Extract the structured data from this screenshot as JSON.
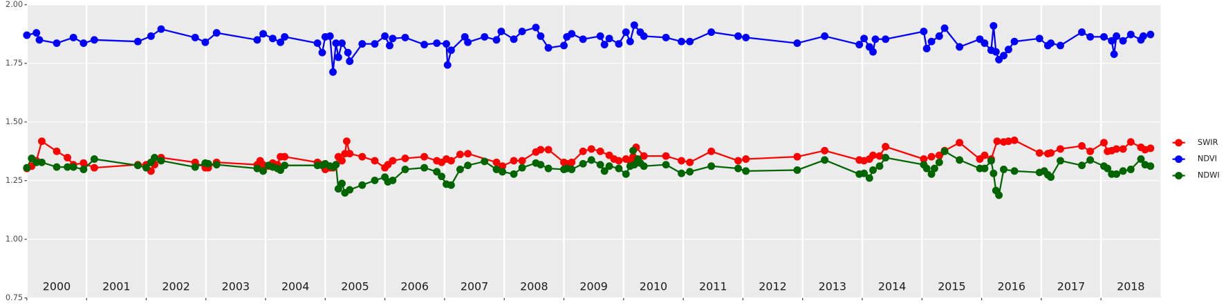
{
  "chart_data": {
    "type": "line",
    "xlim": [
      2000,
      2019
    ],
    "xticks": [
      2000,
      2001,
      2002,
      2003,
      2004,
      2005,
      2006,
      2007,
      2008,
      2009,
      2010,
      2011,
      2012,
      2013,
      2014,
      2015,
      2016,
      2017,
      2018
    ],
    "ylim": [
      0.75,
      2.0
    ],
    "yticks": [
      0.75,
      {
        "value": 1.0,
        "label": "1.00"
      },
      1.25,
      {
        "value": 1.5,
        "label": "1.50"
      },
      1.75,
      {
        "value": 2.0,
        "label": "2.00"
      }
    ],
    "grid": true,
    "legend": "right",
    "series": [
      {
        "name": "SWIR",
        "color": "#ff0000",
        "x": [
          2000.0,
          2000.08,
          2000.16,
          2000.25,
          2000.5,
          2000.68,
          2000.78,
          2000.95,
          2001.13,
          2001.86,
          2002.0,
          2002.08,
          2002.14,
          2002.25,
          2002.82,
          2002.99,
          2003.04,
          2003.18,
          2003.86,
          2003.91,
          2003.96,
          2004.05,
          2004.12,
          2004.2,
          2004.25,
          2004.32,
          2004.87,
          2004.95,
          2005.0,
          2005.08,
          2005.13,
          2005.18,
          2005.22,
          2005.28,
          2005.33,
          2005.36,
          2005.41,
          2005.62,
          2005.83,
          2006.0,
          2006.05,
          2006.13,
          2006.34,
          2006.66,
          2006.87,
          2006.95,
          2007.03,
          2007.11,
          2007.26,
          2007.39,
          2007.87,
          2007.97,
          2008.16,
          2008.3,
          2008.53,
          2008.61,
          2008.74,
          2009.0,
          2009.05,
          2009.13,
          2009.32,
          2009.46,
          2009.61,
          2009.76,
          2009.84,
          2009.92,
          2010.04,
          2010.11,
          2010.16,
          2010.21,
          2010.34,
          2010.71,
          2010.97,
          2011.11,
          2011.47,
          2011.92,
          2012.05,
          2012.91,
          2013.37,
          2013.95,
          2014.03,
          2014.12,
          2014.18,
          2014.29,
          2014.39,
          2015.03,
          2015.16,
          2015.29,
          2015.38,
          2015.63,
          2015.97,
          2016.05,
          2016.16,
          2016.26,
          2016.37,
          2016.45,
          2016.55,
          2016.97,
          2017.11,
          2017.16,
          2017.32,
          2017.68,
          2017.82,
          2018.05,
          2018.11,
          2018.18,
          2018.26,
          2018.37,
          2018.5,
          2018.67,
          2018.74,
          2018.83
        ],
        "values": [
          1.302,
          1.312,
          1.335,
          1.418,
          1.375,
          1.348,
          1.318,
          1.325,
          1.305,
          1.318,
          1.318,
          1.291,
          1.318,
          1.348,
          1.328,
          1.305,
          1.305,
          1.328,
          1.318,
          1.335,
          1.318,
          1.312,
          1.325,
          1.318,
          1.352,
          1.352,
          1.328,
          1.318,
          1.298,
          1.305,
          1.305,
          1.318,
          1.352,
          1.335,
          1.365,
          1.418,
          1.365,
          1.352,
          1.335,
          1.305,
          1.318,
          1.335,
          1.345,
          1.352,
          1.335,
          1.328,
          1.342,
          1.335,
          1.362,
          1.365,
          1.328,
          1.312,
          1.335,
          1.335,
          1.372,
          1.382,
          1.382,
          1.328,
          1.322,
          1.328,
          1.375,
          1.385,
          1.375,
          1.358,
          1.342,
          1.335,
          1.342,
          1.335,
          1.352,
          1.392,
          1.355,
          1.355,
          1.335,
          1.328,
          1.375,
          1.335,
          1.342,
          1.352,
          1.378,
          1.338,
          1.335,
          1.342,
          1.358,
          1.355,
          1.395,
          1.342,
          1.352,
          1.358,
          1.378,
          1.412,
          1.342,
          1.358,
          1.342,
          1.418,
          1.415,
          1.418,
          1.422,
          1.368,
          1.365,
          1.368,
          1.385,
          1.398,
          1.375,
          1.412,
          1.375,
          1.378,
          1.385,
          1.385,
          1.415,
          1.392,
          1.382,
          1.388
        ]
      },
      {
        "name": "NDVI",
        "color": "#0000ff",
        "x": [
          2000.0,
          2000.16,
          2000.21,
          2000.5,
          2000.78,
          2000.95,
          2001.13,
          2001.86,
          2002.08,
          2002.25,
          2002.82,
          2002.99,
          2003.18,
          2003.86,
          2003.96,
          2004.12,
          2004.25,
          2004.32,
          2004.87,
          2004.95,
          2005.0,
          2005.08,
          2005.13,
          2005.18,
          2005.22,
          2005.28,
          2005.38,
          2005.41,
          2005.62,
          2005.83,
          2006.0,
          2006.08,
          2006.13,
          2006.34,
          2006.66,
          2006.87,
          2007.03,
          2007.05,
          2007.11,
          2007.34,
          2007.39,
          2007.67,
          2007.87,
          2007.95,
          2008.16,
          2008.3,
          2008.53,
          2008.61,
          2008.74,
          2009.0,
          2009.05,
          2009.13,
          2009.32,
          2009.61,
          2009.68,
          2009.76,
          2009.92,
          2010.04,
          2010.11,
          2010.18,
          2010.28,
          2010.34,
          2010.71,
          2010.97,
          2011.11,
          2011.47,
          2011.92,
          2012.05,
          2012.91,
          2013.37,
          2013.95,
          2014.03,
          2014.12,
          2014.18,
          2014.22,
          2014.39,
          2015.03,
          2015.08,
          2015.16,
          2015.29,
          2015.38,
          2015.63,
          2015.97,
          2016.05,
          2016.16,
          2016.2,
          2016.24,
          2016.29,
          2016.37,
          2016.45,
          2016.55,
          2016.97,
          2017.11,
          2017.16,
          2017.32,
          2017.68,
          2017.82,
          2018.05,
          2018.18,
          2018.22,
          2018.26,
          2018.37,
          2018.5,
          2018.67,
          2018.71,
          2018.83
        ],
        "values": [
          1.87,
          1.88,
          1.85,
          1.836,
          1.86,
          1.836,
          1.85,
          1.843,
          1.866,
          1.896,
          1.86,
          1.84,
          1.88,
          1.85,
          1.876,
          1.856,
          1.84,
          1.863,
          1.836,
          1.796,
          1.863,
          1.866,
          1.713,
          1.836,
          1.776,
          1.836,
          1.796,
          1.759,
          1.833,
          1.833,
          1.866,
          1.826,
          1.856,
          1.86,
          1.83,
          1.836,
          1.833,
          1.743,
          1.806,
          1.863,
          1.84,
          1.863,
          1.85,
          1.886,
          1.853,
          1.886,
          1.903,
          1.866,
          1.816,
          1.826,
          1.863,
          1.876,
          1.853,
          1.866,
          1.83,
          1.856,
          1.833,
          1.883,
          1.843,
          1.913,
          1.883,
          1.866,
          1.86,
          1.843,
          1.843,
          1.883,
          1.866,
          1.86,
          1.836,
          1.866,
          1.83,
          1.856,
          1.82,
          1.799,
          1.853,
          1.853,
          1.886,
          1.813,
          1.843,
          1.866,
          1.9,
          1.82,
          1.853,
          1.836,
          1.806,
          1.91,
          1.799,
          1.766,
          1.783,
          1.809,
          1.843,
          1.856,
          1.826,
          1.836,
          1.826,
          1.883,
          1.863,
          1.863,
          1.846,
          1.789,
          1.866,
          1.846,
          1.873,
          1.85,
          1.866,
          1.873
        ]
      },
      {
        "name": "NDWI",
        "color": "#006400",
        "x": [
          2000.0,
          2000.08,
          2000.16,
          2000.25,
          2000.5,
          2000.68,
          2000.78,
          2000.95,
          2001.13,
          2001.86,
          2002.0,
          2002.08,
          2002.14,
          2002.25,
          2002.82,
          2002.99,
          2003.04,
          2003.18,
          2003.86,
          2003.96,
          2004.05,
          2004.12,
          2004.2,
          2004.25,
          2004.32,
          2004.87,
          2004.95,
          2005.0,
          2005.08,
          2005.13,
          2005.18,
          2005.22,
          2005.28,
          2005.33,
          2005.41,
          2005.62,
          2005.83,
          2006.0,
          2006.05,
          2006.13,
          2006.34,
          2006.66,
          2006.87,
          2006.95,
          2007.03,
          2007.11,
          2007.26,
          2007.39,
          2007.67,
          2007.87,
          2007.97,
          2008.16,
          2008.3,
          2008.53,
          2008.61,
          2008.74,
          2009.0,
          2009.05,
          2009.13,
          2009.32,
          2009.46,
          2009.61,
          2009.68,
          2009.76,
          2009.92,
          2010.04,
          2010.11,
          2010.16,
          2010.18,
          2010.24,
          2010.28,
          2010.34,
          2010.71,
          2010.97,
          2011.11,
          2011.47,
          2011.92,
          2012.05,
          2012.91,
          2013.37,
          2013.95,
          2014.03,
          2014.12,
          2014.18,
          2014.29,
          2014.39,
          2015.03,
          2015.08,
          2015.16,
          2015.21,
          2015.29,
          2015.38,
          2015.63,
          2015.97,
          2016.05,
          2016.16,
          2016.2,
          2016.24,
          2016.29,
          2016.37,
          2016.55,
          2016.97,
          2017.05,
          2017.11,
          2017.16,
          2017.32,
          2017.68,
          2017.82,
          2018.05,
          2018.11,
          2018.18,
          2018.26,
          2018.37,
          2018.5,
          2018.67,
          2018.74,
          2018.83
        ],
        "values": [
          1.305,
          1.345,
          1.328,
          1.328,
          1.308,
          1.308,
          1.308,
          1.298,
          1.342,
          1.315,
          1.305,
          1.328,
          1.348,
          1.335,
          1.308,
          1.325,
          1.322,
          1.318,
          1.302,
          1.291,
          1.315,
          1.308,
          1.302,
          1.295,
          1.315,
          1.315,
          1.315,
          1.322,
          1.312,
          1.308,
          1.318,
          1.215,
          1.238,
          1.198,
          1.211,
          1.231,
          1.251,
          1.265,
          1.245,
          1.251,
          1.298,
          1.305,
          1.288,
          1.268,
          1.235,
          1.231,
          1.298,
          1.315,
          1.332,
          1.298,
          1.288,
          1.278,
          1.305,
          1.325,
          1.318,
          1.302,
          1.298,
          1.302,
          1.298,
          1.322,
          1.338,
          1.318,
          1.291,
          1.312,
          1.302,
          1.278,
          1.312,
          1.378,
          1.318,
          1.342,
          1.325,
          1.312,
          1.318,
          1.281,
          1.288,
          1.312,
          1.302,
          1.291,
          1.295,
          1.338,
          1.278,
          1.281,
          1.261,
          1.295,
          1.312,
          1.348,
          1.318,
          1.302,
          1.278,
          1.302,
          1.328,
          1.375,
          1.338,
          1.302,
          1.302,
          1.335,
          1.281,
          1.208,
          1.188,
          1.298,
          1.291,
          1.285,
          1.291,
          1.275,
          1.265,
          1.335,
          1.315,
          1.338,
          1.312,
          1.302,
          1.278,
          1.278,
          1.291,
          1.298,
          1.342,
          1.318,
          1.312
        ]
      }
    ]
  }
}
